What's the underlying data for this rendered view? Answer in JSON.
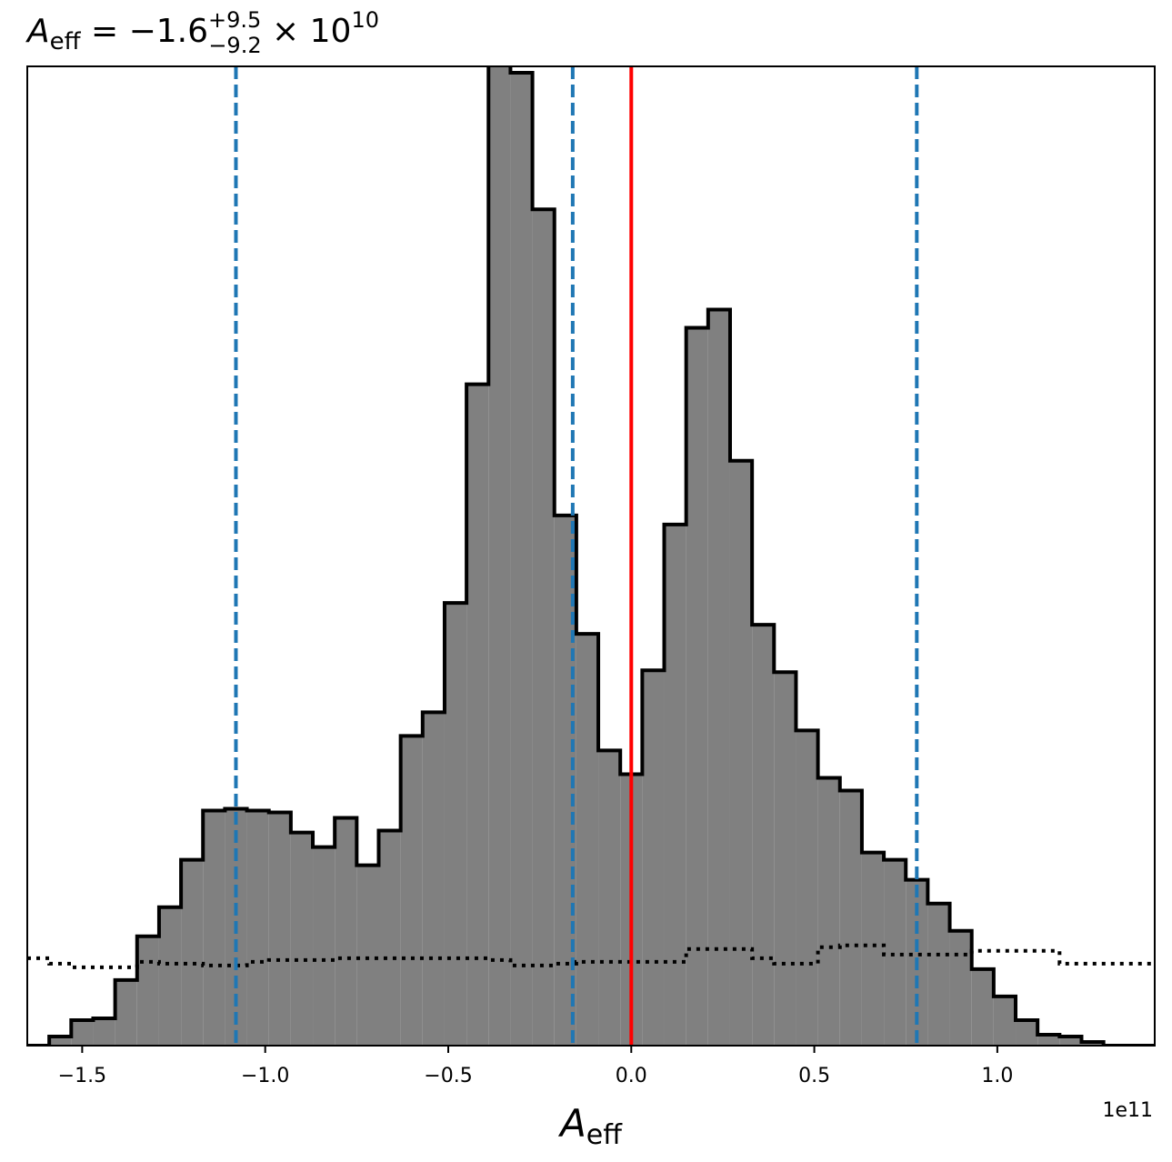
{
  "chart_data": {
    "type": "bar",
    "title": {
      "var": "A",
      "var_sub": "eff",
      "eq": " = −1.6",
      "sup": "+9.5",
      "sub": "−9.2",
      "times": " × 10",
      "exp": "10"
    },
    "xlabel": {
      "var": "A",
      "sub": "eff"
    },
    "ylabel": "",
    "x_offset_text": "1e11",
    "xlim": [
      -165000000000.0,
      143000000000.0
    ],
    "ylim": [
      0,
      1075
    ],
    "x_ticks": [
      -150000000000.0,
      -100000000000.0,
      -50000000000.0,
      0.0,
      50000000000.0,
      100000000000.0
    ],
    "x_tick_labels": [
      "−1.5",
      "−1.0",
      "−0.5",
      "0.0",
      "0.5",
      "1.0"
    ],
    "grid": false,
    "bin_edges": [
      -165000000000.0,
      -159000000000.0,
      -153000000000.0,
      -147000000000.0,
      -141000000000.0,
      -135000000000.0,
      -129000000000.0,
      -123000000000.0,
      -117000000000.0,
      -111000000000.0,
      -105000000000.0,
      -99000000000.0,
      -93000000000.0,
      -87000000000.0,
      -81000000000.0,
      -75000000000.0,
      -69000000000.0,
      -63000000000.0,
      -57000000000.0,
      -51000000000.0,
      -45000000000.0,
      -39000000000.0,
      -33000000000.0,
      -27000000000.0,
      -21000000000.0,
      -15000000000.0,
      -9000000000.0,
      -3000000000.0,
      3000000000.0,
      9000000000.0,
      15000000000.0,
      21000000000.0,
      27000000000.0,
      33000000000.0,
      39000000000.0,
      45000000000.0,
      51000000000.0,
      57000000000.0,
      63000000000.0,
      69000000000.0,
      75000000000.0,
      81000000000.0,
      87000000000.0,
      93000000000.0,
      99000000000.0,
      105000000000.0,
      111000000000.0,
      117000000000.0,
      123000000000.0,
      129000000000.0,
      135000000000.0,
      141000000000.0,
      143000000000.0
    ],
    "series": [
      {
        "style": "filled-step",
        "fill": "#808080",
        "stroke": "#000000",
        "values": [
          0,
          10,
          28,
          30,
          72,
          120,
          152,
          204,
          258,
          260,
          258,
          256,
          234,
          218,
          250,
          198,
          236,
          340,
          366,
          486,
          726,
          1076,
          1068,
          918,
          582,
          452,
          324,
          298,
          412,
          572,
          788,
          808,
          642,
          462,
          410,
          346,
          294,
          280,
          212,
          204,
          182,
          156,
          126,
          84,
          54,
          28,
          12,
          10,
          4,
          0,
          0,
          0
        ],
        "closed_right": false
      },
      {
        "style": "dotted-step",
        "stroke": "#000000",
        "values": [
          96,
          90,
          86,
          86,
          86,
          92,
          90,
          90,
          88,
          88,
          92,
          94,
          94,
          94,
          96,
          96,
          96,
          96,
          96,
          96,
          96,
          94,
          88,
          88,
          90,
          92,
          92,
          92,
          92,
          92,
          106,
          106,
          106,
          96,
          90,
          90,
          108,
          110,
          110,
          100,
          100,
          100,
          100,
          104,
          104,
          104,
          104,
          90,
          90,
          90,
          90,
          90
        ]
      }
    ],
    "vlines": [
      {
        "x": -108000000000.0,
        "color": "#1f77b4",
        "style": "dashed"
      },
      {
        "x": -16000000000.0,
        "color": "#1f77b4",
        "style": "dashed"
      },
      {
        "x": 0.0,
        "color": "#ff0000",
        "style": "solid"
      },
      {
        "x": 78000000000.0,
        "color": "#1f77b4",
        "style": "dashed"
      }
    ]
  }
}
